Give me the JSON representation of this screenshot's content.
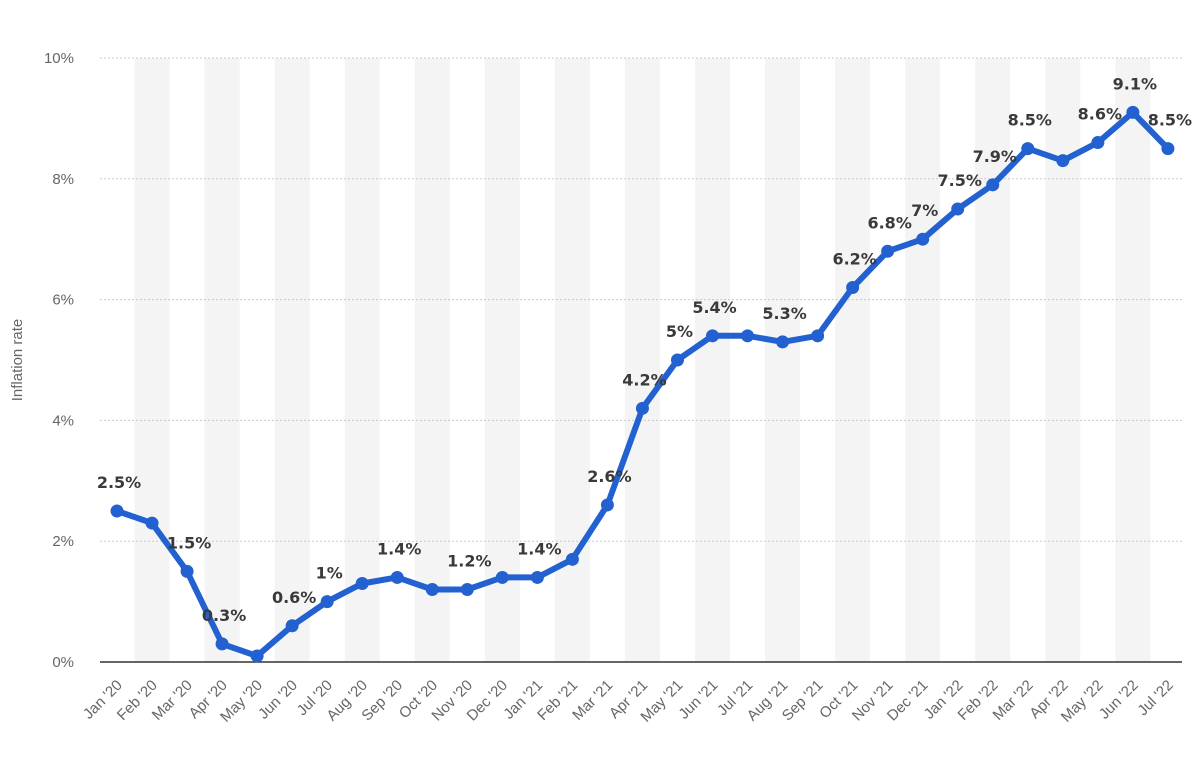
{
  "chart_data": {
    "type": "line",
    "title": "",
    "xlabel": "",
    "ylabel": "Inflation rate",
    "ylim": [
      0,
      10
    ],
    "yticks": [
      "0%",
      "2%",
      "4%",
      "6%",
      "8%",
      "10%"
    ],
    "grid": "horizontal dotted",
    "alternating_column_bands": true,
    "line_color": "#2361d0",
    "categories": [
      "Jan '20",
      "Feb '20",
      "Mar '20",
      "Apr '20",
      "May '20",
      "Jun '20",
      "Jul '20",
      "Aug '20",
      "Sep '20",
      "Oct '20",
      "Nov '20",
      "Dec '20",
      "Jan '21",
      "Feb '21",
      "Mar '21",
      "Apr '21",
      "May '21",
      "Jun '21",
      "Jul '21",
      "Aug '21",
      "Sep '21",
      "Oct '21",
      "Nov '21",
      "Dec '21",
      "Jan '22",
      "Feb '22",
      "Mar '22",
      "Apr '22",
      "May '22",
      "Jun '22",
      "Jul '22"
    ],
    "values": [
      2.5,
      2.3,
      1.5,
      0.3,
      0.1,
      0.6,
      1.0,
      1.3,
      1.4,
      1.2,
      1.2,
      1.4,
      1.4,
      1.7,
      2.6,
      4.2,
      5.0,
      5.4,
      5.4,
      5.3,
      5.4,
      6.2,
      6.8,
      7.0,
      7.5,
      7.9,
      8.5,
      8.3,
      8.6,
      9.1,
      8.5
    ],
    "data_labels": [
      {
        "index": 0,
        "text": "2.5%"
      },
      {
        "index": 2,
        "text": "1.5%"
      },
      {
        "index": 3,
        "text": "0.3%"
      },
      {
        "index": 5,
        "text": "0.6%"
      },
      {
        "index": 6,
        "text": "1%"
      },
      {
        "index": 8,
        "text": "1.4%"
      },
      {
        "index": 10,
        "text": "1.2%"
      },
      {
        "index": 12,
        "text": "1.4%"
      },
      {
        "index": 14,
        "text": "2.6%"
      },
      {
        "index": 15,
        "text": "4.2%"
      },
      {
        "index": 16,
        "text": "5%"
      },
      {
        "index": 17,
        "text": "5.4%"
      },
      {
        "index": 19,
        "text": "5.3%"
      },
      {
        "index": 21,
        "text": "6.2%"
      },
      {
        "index": 22,
        "text": "6.8%"
      },
      {
        "index": 23,
        "text": "7%"
      },
      {
        "index": 24,
        "text": "7.5%"
      },
      {
        "index": 25,
        "text": "7.9%"
      },
      {
        "index": 26,
        "text": "8.5%"
      },
      {
        "index": 28,
        "text": "8.6%"
      },
      {
        "index": 29,
        "text": "9.1%"
      },
      {
        "index": 30,
        "text": "8.5%"
      }
    ]
  }
}
